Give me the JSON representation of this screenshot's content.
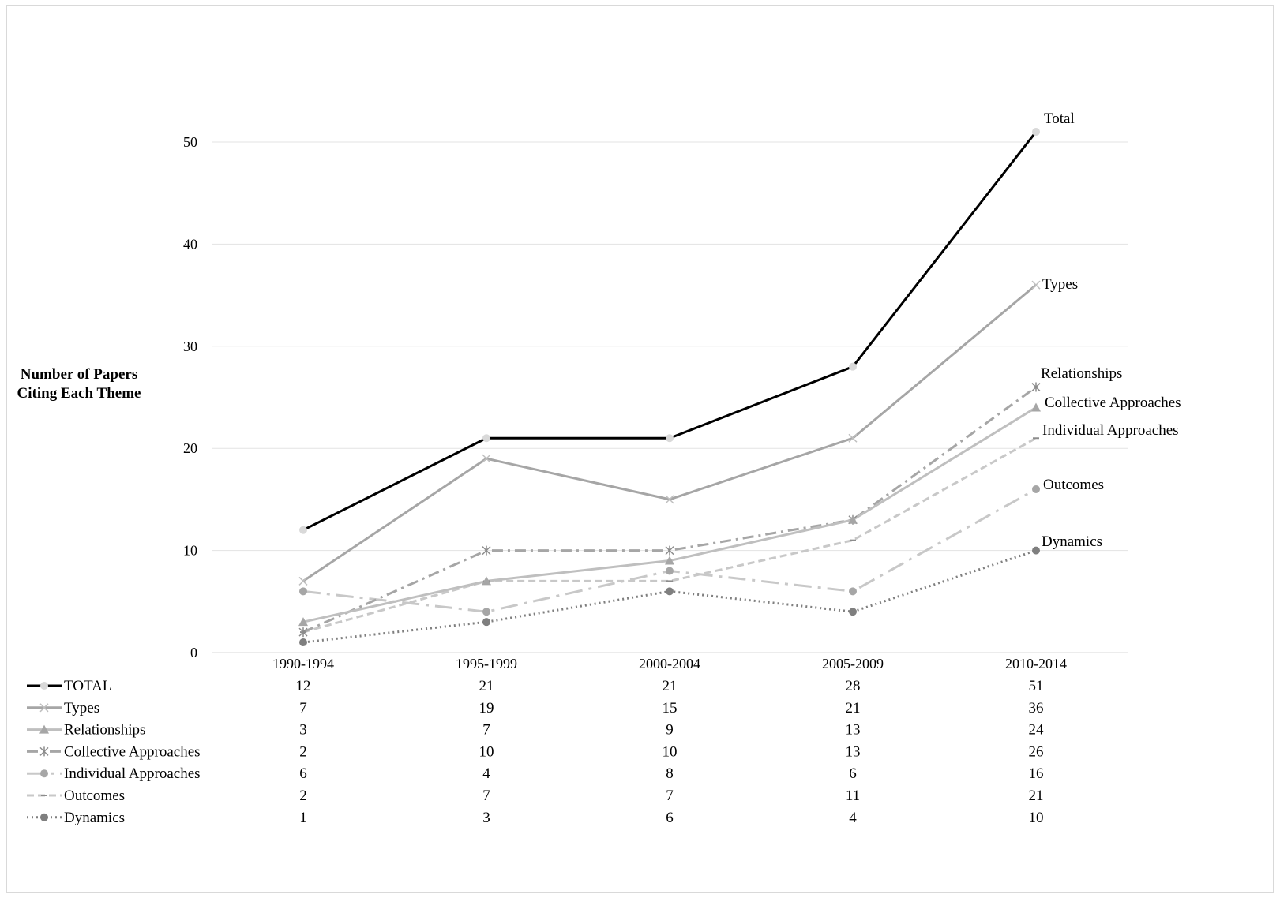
{
  "chart_data": {
    "type": "line",
    "title": "",
    "xlabel": "",
    "ylabel_lines": [
      "Number of Papers",
      "Citing Each Theme"
    ],
    "ylim": [
      0,
      50
    ],
    "yticks": [
      0,
      10,
      20,
      30,
      40,
      50
    ],
    "grid": true,
    "legend_placement": "data-table-below",
    "categories": [
      "1990-1994",
      "1995-1999",
      "2000-2004",
      "2005-2009",
      "2010-2014"
    ],
    "series": [
      {
        "name": "TOTAL",
        "end_label": "Total",
        "values": [
          12,
          21,
          21,
          28,
          51
        ],
        "color": "#000000",
        "marker_color": "#d9d9d9",
        "marker": "circle",
        "dash": ""
      },
      {
        "name": "Types",
        "end_label": "Types",
        "values": [
          7,
          19,
          15,
          21,
          36
        ],
        "color": "#a6a6a6",
        "marker_color": "#bfbfbf",
        "marker": "x",
        "dash": ""
      },
      {
        "name": "Relationships",
        "end_label": "Relationships",
        "values": [
          3,
          7,
          9,
          13,
          24
        ],
        "color": "#bfbfbf",
        "marker_color": "#a6a6a6",
        "marker": "triangle",
        "dash": ""
      },
      {
        "name": "Collective Approaches",
        "end_label": "Collective Approaches",
        "values": [
          2,
          10,
          10,
          13,
          26
        ],
        "color": "#a6a6a6",
        "marker_color": "#8c8c8c",
        "marker": "star",
        "dash": "14 6 3 6"
      },
      {
        "name": "Individual Approaches",
        "end_label": "Individual Approaches",
        "values": [
          6,
          4,
          8,
          6,
          16
        ],
        "color": "#c8c8c8",
        "marker_color": "#a6a6a6",
        "marker": "circle",
        "dash": "22 8 4 8"
      },
      {
        "name": "Outcomes",
        "end_label": "Outcomes",
        "values": [
          2,
          7,
          7,
          11,
          21
        ],
        "color": "#c8c8c8",
        "marker_color": "#8c8c8c",
        "marker": "dash",
        "dash": "9 5"
      },
      {
        "name": "Dynamics",
        "end_label": "Dynamics",
        "values": [
          1,
          3,
          6,
          4,
          10
        ],
        "color": "#7f7f7f",
        "marker_color": "#7f7f7f",
        "marker": "circle",
        "dash": "2 4"
      }
    ]
  }
}
